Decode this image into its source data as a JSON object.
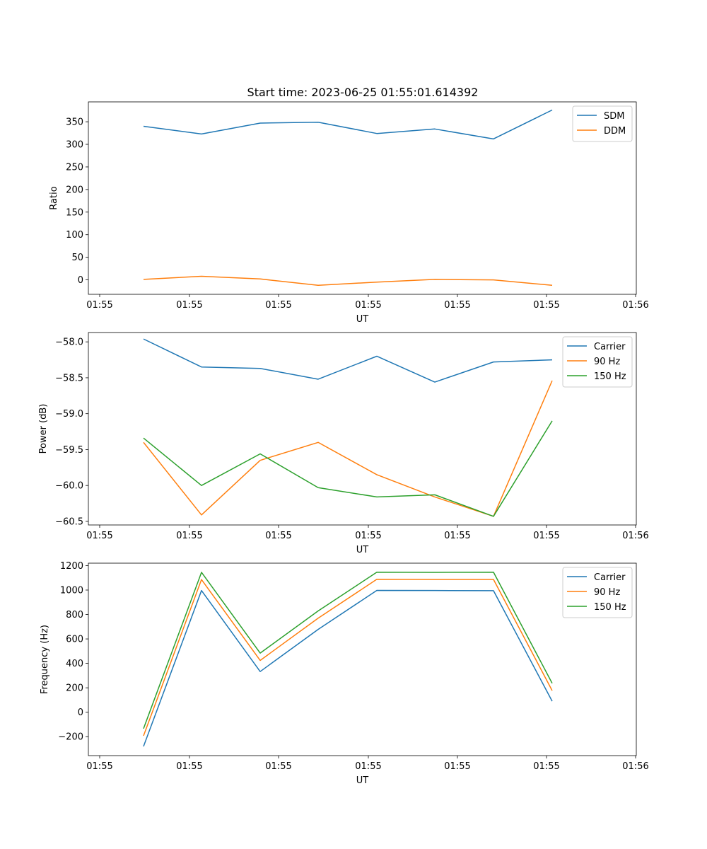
{
  "title": "Start time: 2023-06-25 01:55:01.614392",
  "colors": {
    "blue": "#1f77b4",
    "orange": "#ff7f0e",
    "green": "#2ca02c"
  },
  "chart_data": [
    {
      "type": "line",
      "xlabel": "UT",
      "ylabel": "Ratio",
      "xticks": [
        "01:55",
        "01:55",
        "01:55",
        "01:55",
        "01:55",
        "01:55",
        "01:56"
      ],
      "yticks": [
        "0",
        "50",
        "100",
        "150",
        "200",
        "250",
        "300",
        "350"
      ],
      "ylim": [
        -32,
        394
      ],
      "grid": false,
      "legend_position": "top-right",
      "series": [
        {
          "name": "SDM",
          "color": "#1f77b4",
          "values": [
            340,
            323,
            347,
            349,
            324,
            334,
            312,
            376
          ]
        },
        {
          "name": "DDM",
          "color": "#ff7f0e",
          "values": [
            1,
            8,
            2,
            -12,
            -5,
            1,
            0,
            -12
          ]
        }
      ]
    },
    {
      "type": "line",
      "xlabel": "UT",
      "ylabel": "Power (dB)",
      "xticks": [
        "01:55",
        "01:55",
        "01:55",
        "01:55",
        "01:55",
        "01:55",
        "01:56"
      ],
      "yticks": [
        "−60.5",
        "−60.0",
        "−59.5",
        "−59.0",
        "−58.5",
        "−58.0"
      ],
      "ylim": [
        -60.55,
        -57.87
      ],
      "grid": false,
      "legend_position": "top-right",
      "series": [
        {
          "name": "Carrier",
          "color": "#1f77b4",
          "values": [
            -57.96,
            -58.35,
            -58.37,
            -58.52,
            -58.2,
            -58.56,
            -58.28,
            -58.25
          ]
        },
        {
          "name": "90 Hz",
          "color": "#ff7f0e",
          "values": [
            -59.4,
            -60.41,
            -59.65,
            -59.4,
            -59.85,
            -60.16,
            -60.43,
            -58.54
          ]
        },
        {
          "name": "150 Hz",
          "color": "#2ca02c",
          "values": [
            -59.34,
            -60.0,
            -59.56,
            -60.03,
            -60.16,
            -60.13,
            -60.43,
            -59.1
          ]
        }
      ]
    },
    {
      "type": "line",
      "xlabel": "UT",
      "ylabel": "Frequency (Hz)",
      "xticks": [
        "01:55",
        "01:55",
        "01:55",
        "01:55",
        "01:55",
        "01:55",
        "01:56"
      ],
      "yticks": [
        "−200",
        "0",
        "200",
        "400",
        "600",
        "800",
        "1000",
        "1200"
      ],
      "ylim": [
        -355,
        1220
      ],
      "grid": false,
      "legend_position": "top-right",
      "series": [
        {
          "name": "Carrier",
          "color": "#1f77b4",
          "values": [
            -280,
            996,
            333,
            678,
            997,
            996,
            995,
            90
          ]
        },
        {
          "name": "90 Hz",
          "color": "#ff7f0e",
          "values": [
            -193,
            1086,
            424,
            770,
            1088,
            1087,
            1087,
            177
          ]
        },
        {
          "name": "150 Hz",
          "color": "#2ca02c",
          "values": [
            -134,
            1145,
            484,
            829,
            1146,
            1145,
            1146,
            237
          ]
        }
      ]
    }
  ]
}
